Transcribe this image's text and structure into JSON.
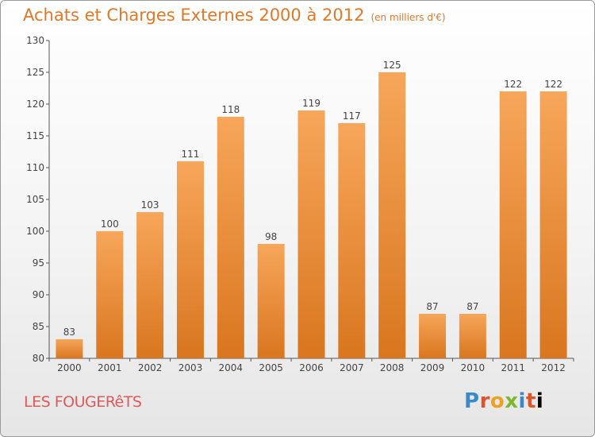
{
  "header": {
    "title": "Achats et Charges Externes 2000 à 2012",
    "unit": "(en milliers d'€)"
  },
  "footer": {
    "place": "LES FOUGERêTS",
    "logo": [
      "P",
      "r",
      "o",
      "x",
      "i",
      "t",
      "i"
    ]
  },
  "colors": {
    "title": "#e07828",
    "bar_top": "#f7a65a",
    "bar_bottom": "#d9761f",
    "place": "#e05a5a"
  },
  "chart_data": {
    "type": "bar",
    "title": "Achats et Charges Externes 2000 à 2012",
    "subtitle": "(en milliers d'€)",
    "categories": [
      "2000",
      "2001",
      "2002",
      "2003",
      "2004",
      "2005",
      "2006",
      "2007",
      "2008",
      "2009",
      "2010",
      "2011",
      "2012"
    ],
    "values": [
      83,
      100,
      103,
      111,
      118,
      98,
      119,
      117,
      125,
      87,
      87,
      122,
      122
    ],
    "ylim": [
      80,
      130
    ],
    "yticks": [
      80,
      85,
      90,
      95,
      100,
      105,
      110,
      115,
      120,
      125,
      130
    ],
    "grid": false,
    "data_labels": true
  }
}
